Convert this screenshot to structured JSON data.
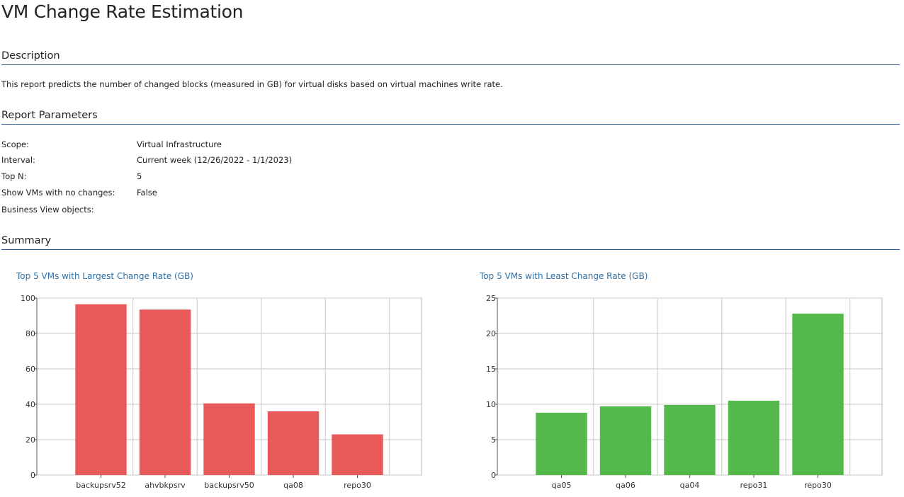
{
  "page": {
    "title": "VM Change Rate Estimation"
  },
  "sections": {
    "description": {
      "header": "Description",
      "text": "This report predicts the number of changed blocks (measured in GB) for virtual disks based on virtual machines write rate."
    },
    "parameters": {
      "header": "Report Parameters",
      "rows": [
        {
          "label": "Scope:",
          "value": "Virtual Infrastructure"
        },
        {
          "label": "Interval:",
          "value": "Current week (12/26/2022 - 1/1/2023)"
        },
        {
          "label": "Top N:",
          "value": "5"
        },
        {
          "label": "Show VMs with no changes:",
          "value": "False"
        },
        {
          "label": "Business View objects:",
          "value": ""
        }
      ]
    },
    "summary": {
      "header": "Summary"
    }
  },
  "chart_data": [
    {
      "type": "bar",
      "title": "Top 5 VMs with Largest Change Rate (GB)",
      "categories": [
        "backupsrv52",
        "ahvbkpsrv",
        "backupsrv50",
        "qa08",
        "repo30"
      ],
      "values": [
        96.5,
        93.5,
        40.5,
        36,
        23
      ],
      "ylim": [
        0,
        100
      ],
      "yticks": [
        0,
        20,
        40,
        60,
        80,
        100
      ],
      "xlabel": "",
      "ylabel": "",
      "color": "#e85a5a",
      "grid": true
    },
    {
      "type": "bar",
      "title": "Top 5 VMs with Least Change Rate (GB)",
      "categories": [
        "qa05",
        "qa06",
        "qa04",
        "repo31",
        "repo30"
      ],
      "values": [
        8.8,
        9.7,
        9.9,
        10.5,
        22.8
      ],
      "ylim": [
        0,
        25
      ],
      "yticks": [
        0,
        5,
        10,
        15,
        20,
        25
      ],
      "xlabel": "",
      "ylabel": "",
      "color": "#54b84a",
      "grid": true
    }
  ]
}
